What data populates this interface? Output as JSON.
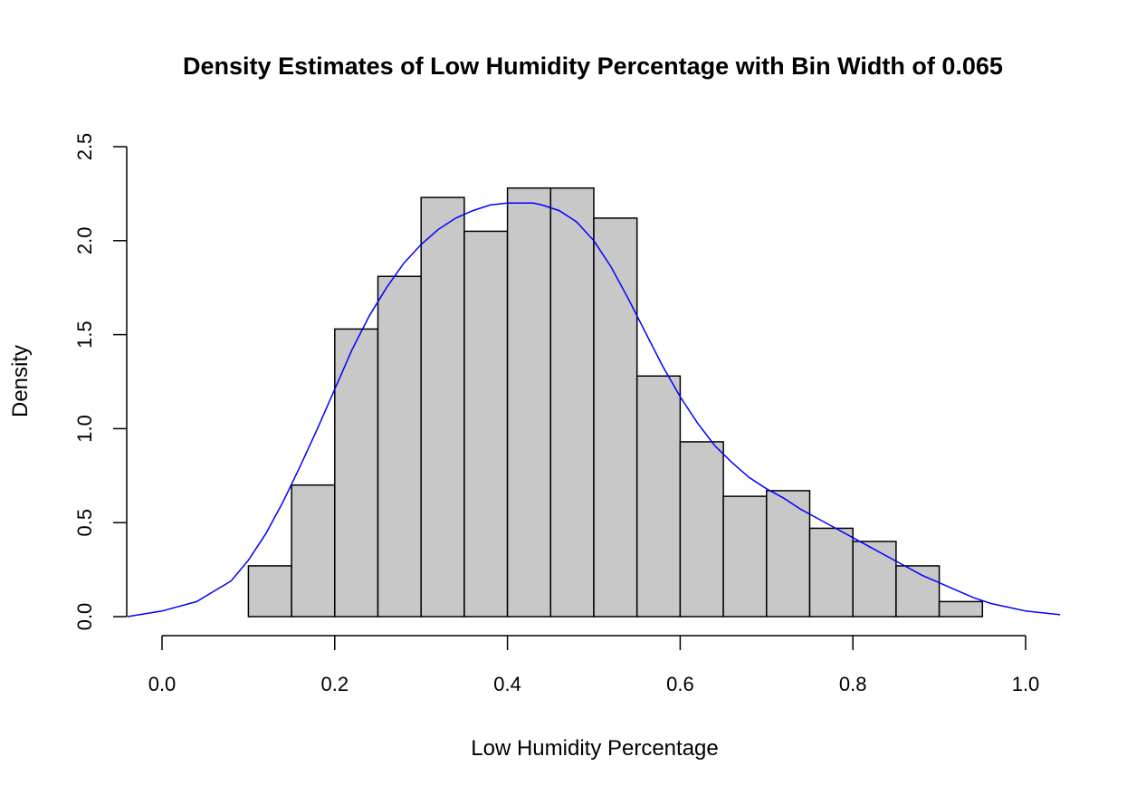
{
  "chart_data": {
    "type": "bar",
    "title": "Density Estimates of Low Humidity Percentage with Bin Width of 0.065",
    "xlabel": "Low Humidity Percentage",
    "ylabel": "Density",
    "xlim": [
      0.0,
      1.0
    ],
    "ylim": [
      0.0,
      2.5
    ],
    "x_ticks": [
      "0.0",
      "0.2",
      "0.4",
      "0.6",
      "0.8",
      "1.0"
    ],
    "y_ticks": [
      "0.0",
      "0.5",
      "1.0",
      "1.5",
      "2.0",
      "2.5"
    ],
    "grid": false,
    "bins": [
      {
        "start": 0.1,
        "end": 0.15,
        "density": 0.27
      },
      {
        "start": 0.15,
        "end": 0.2,
        "density": 0.7
      },
      {
        "start": 0.2,
        "end": 0.25,
        "density": 1.53
      },
      {
        "start": 0.25,
        "end": 0.3,
        "density": 1.81
      },
      {
        "start": 0.3,
        "end": 0.35,
        "density": 2.23
      },
      {
        "start": 0.35,
        "end": 0.4,
        "density": 2.05
      },
      {
        "start": 0.4,
        "end": 0.45,
        "density": 2.28
      },
      {
        "start": 0.45,
        "end": 0.5,
        "density": 2.28
      },
      {
        "start": 0.5,
        "end": 0.55,
        "density": 2.12
      },
      {
        "start": 0.55,
        "end": 0.6,
        "density": 1.28
      },
      {
        "start": 0.6,
        "end": 0.65,
        "density": 0.93
      },
      {
        "start": 0.65,
        "end": 0.7,
        "density": 0.64
      },
      {
        "start": 0.7,
        "end": 0.75,
        "density": 0.67
      },
      {
        "start": 0.75,
        "end": 0.8,
        "density": 0.47
      },
      {
        "start": 0.8,
        "end": 0.85,
        "density": 0.4
      },
      {
        "start": 0.85,
        "end": 0.9,
        "density": 0.27
      },
      {
        "start": 0.9,
        "end": 0.95,
        "density": 0.08
      }
    ],
    "density_curve": {
      "x": [
        -0.04,
        0.0,
        0.04,
        0.08,
        0.1,
        0.12,
        0.14,
        0.16,
        0.18,
        0.2,
        0.22,
        0.24,
        0.26,
        0.28,
        0.3,
        0.32,
        0.34,
        0.36,
        0.38,
        0.4,
        0.42,
        0.43,
        0.44,
        0.46,
        0.48,
        0.5,
        0.52,
        0.54,
        0.56,
        0.58,
        0.6,
        0.62,
        0.64,
        0.66,
        0.68,
        0.7,
        0.72,
        0.74,
        0.76,
        0.78,
        0.8,
        0.82,
        0.84,
        0.86,
        0.88,
        0.9,
        0.92,
        0.94,
        0.96,
        0.98,
        1.0,
        1.04
      ],
      "y": [
        0.0,
        0.03,
        0.08,
        0.19,
        0.3,
        0.44,
        0.61,
        0.8,
        1.0,
        1.21,
        1.42,
        1.6,
        1.75,
        1.88,
        1.98,
        2.06,
        2.12,
        2.16,
        2.19,
        2.2,
        2.2,
        2.2,
        2.19,
        2.16,
        2.1,
        2.0,
        1.86,
        1.69,
        1.51,
        1.33,
        1.17,
        1.03,
        0.91,
        0.82,
        0.74,
        0.68,
        0.63,
        0.57,
        0.52,
        0.47,
        0.42,
        0.37,
        0.32,
        0.27,
        0.22,
        0.18,
        0.14,
        0.1,
        0.07,
        0.05,
        0.03,
        0.01
      ]
    },
    "colors": {
      "bar_fill": "#c8c8c8",
      "bar_stroke": "#000000",
      "density_line": "#0000ff"
    }
  }
}
